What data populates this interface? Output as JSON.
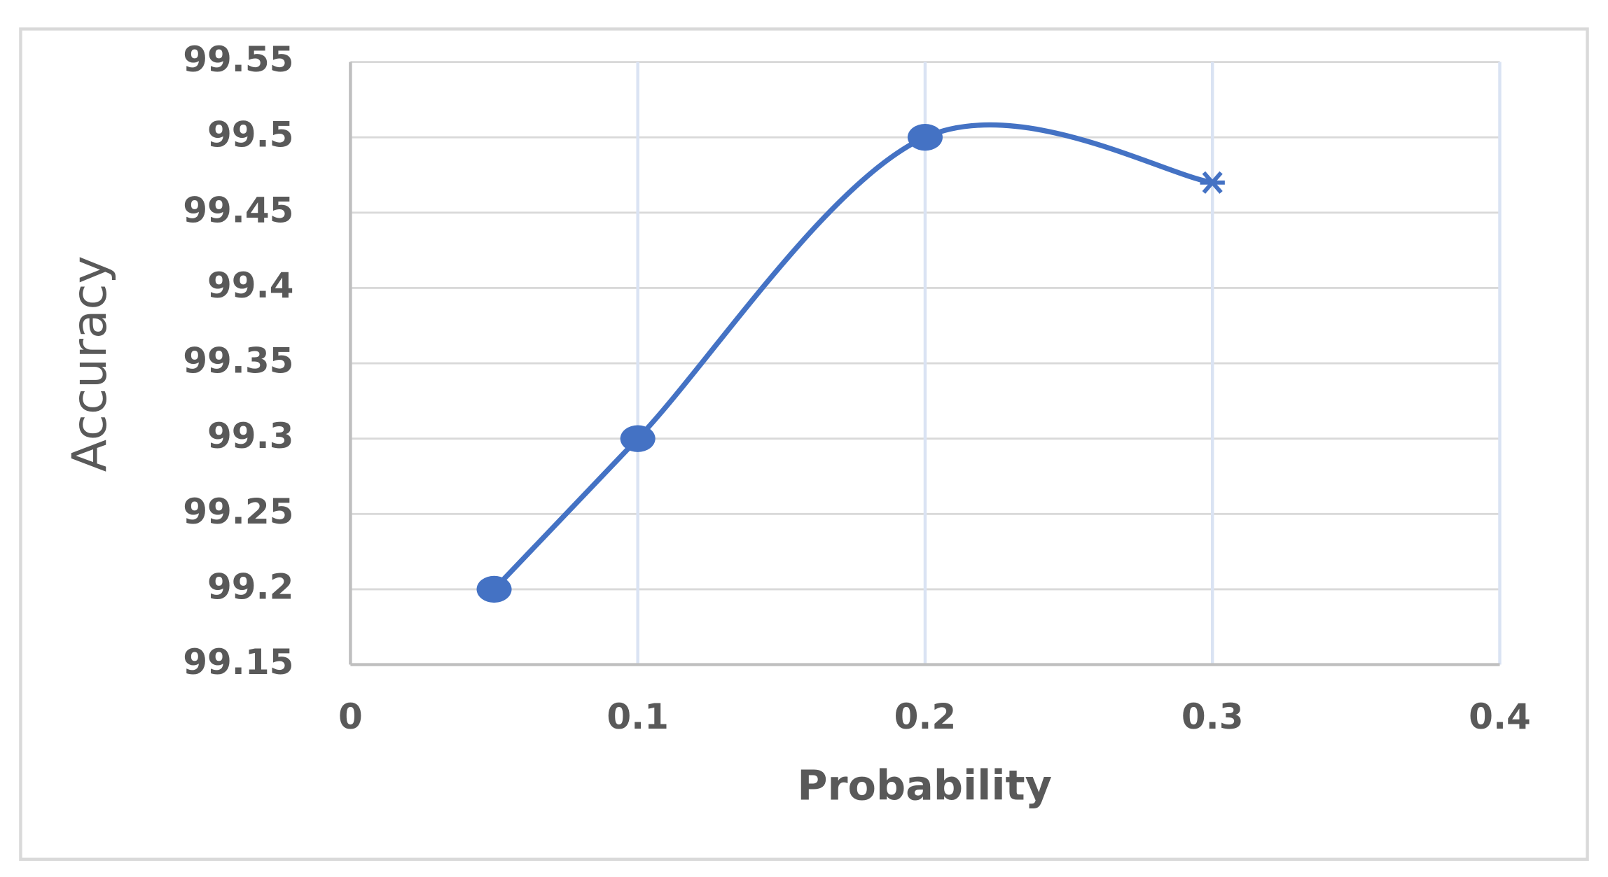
{
  "chart_data": {
    "type": "line",
    "smooth": true,
    "x": [
      0.05,
      0.1,
      0.2,
      0.3
    ],
    "values": [
      99.2,
      99.3,
      99.5,
      99.47
    ],
    "markers": [
      "circle",
      "circle",
      "circle",
      "asterisk"
    ],
    "color": "#4472c4",
    "xlabel": "Probability",
    "ylabel": "Accuracy",
    "xlim": [
      0,
      0.4
    ],
    "xticks": [
      0,
      0.1,
      0.2,
      0.3,
      0.4
    ],
    "ylim": [
      99.15,
      99.55
    ],
    "yticks": [
      99.15,
      99.2,
      99.25,
      99.3,
      99.35,
      99.4,
      99.45,
      99.5,
      99.55
    ],
    "grid": true
  }
}
